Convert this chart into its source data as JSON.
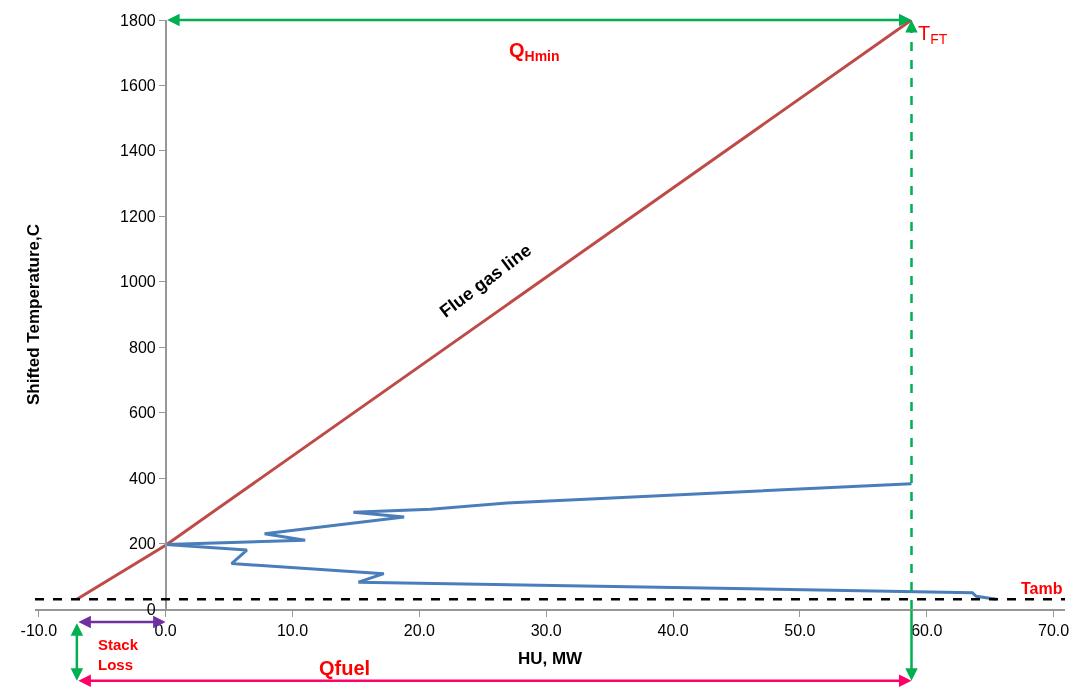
{
  "chart_data": {
    "type": "line",
    "xlabel": "HU, MW",
    "ylabel": "Shifted Temperature,C",
    "series": [
      {
        "color": "#be4b48",
        "x": [
          58.8,
          0.0,
          -7.0
        ],
        "values": [
          1800,
          195,
          30
        ]
      },
      {
        "color": "#4a7ebb",
        "x": [
          65.5,
          63.9,
          63.6,
          15.2,
          17.2,
          5.2,
          6.4,
          0.0,
          11.0,
          7.8,
          18.8,
          14.8,
          20.9,
          27.3,
          58.8
        ],
        "values": [
          30,
          39,
          50,
          82,
          108,
          139,
          180,
          197,
          210,
          230,
          281,
          296,
          305,
          325,
          383
        ]
      }
    ],
    "xlim": [
      -10.3,
      70.9
    ],
    "ylim": [
      0,
      1800
    ],
    "xticks": [
      {
        "value": -10,
        "label": "-10.0"
      },
      {
        "value": 0,
        "label": "0.0"
      },
      {
        "value": 10,
        "label": "10.0"
      },
      {
        "value": 20,
        "label": "20.0"
      },
      {
        "value": 30,
        "label": "30.0"
      },
      {
        "value": 40,
        "label": "40.0"
      },
      {
        "value": 50,
        "label": "50.0"
      },
      {
        "value": 60,
        "label": "60.0"
      },
      {
        "value": 70,
        "label": "70.0"
      }
    ],
    "yticks": [
      0,
      200,
      400,
      600,
      800,
      1000,
      1200,
      1400,
      1600,
      1800
    ],
    "ref_lines": [
      {
        "axis": "y",
        "value": 30,
        "label": "Tamb",
        "color": "#000000",
        "line_style": "dashed"
      },
      {
        "axis": "x",
        "value": 58.8,
        "color": "#00b050",
        "line_style": "dashed"
      }
    ],
    "annotations": [
      {
        "text": "T$_{FT}$",
        "x": 58.8,
        "y": 1800
      },
      "Q$_{Hmin}$",
      "Flue gas line",
      "Stack\nLoss",
      "Qfuel"
    ],
    "marker": "none",
    "line_style": "solid"
  }
}
